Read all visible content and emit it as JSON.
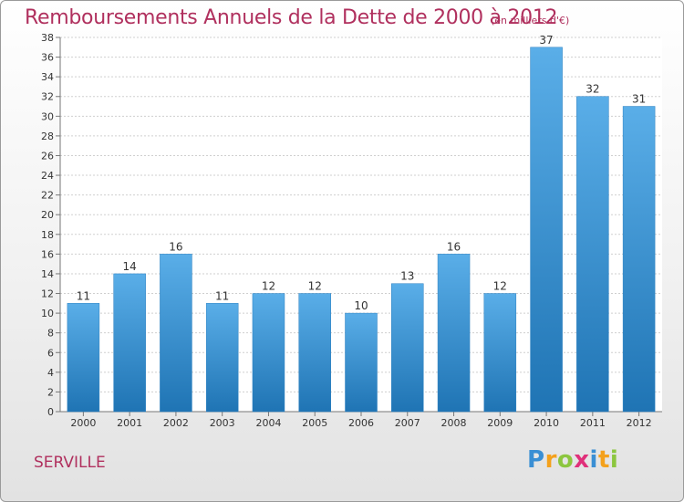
{
  "header": {
    "title": "Remboursements Annuels de la Dette de 2000 à 2012",
    "unit_note": "(en milliers d'€)"
  },
  "footer": {
    "commune": "SERVILLE",
    "logo_text": "Proxiti"
  },
  "colors": {
    "title": "#b0305e",
    "bar_top": "#5aaee8",
    "bar_bottom": "#1f74b4",
    "grid": "#cccccc"
  },
  "chart_data": {
    "type": "bar",
    "title": "Remboursements Annuels de la Dette de 2000 à 2012",
    "subtitle": "(en milliers d'€)",
    "categories": [
      "2000",
      "2001",
      "2002",
      "2003",
      "2004",
      "2005",
      "2006",
      "2007",
      "2008",
      "2009",
      "2010",
      "2011",
      "2012"
    ],
    "values": [
      11,
      14,
      16,
      11,
      12,
      12,
      10,
      13,
      16,
      12,
      37,
      32,
      31
    ],
    "data_labels": [
      "11",
      "14",
      "16",
      "11",
      "12",
      "12",
      "10",
      "13",
      "16",
      "12",
      "37",
      "32",
      "31"
    ],
    "ylim": [
      0,
      38
    ],
    "yticks": [
      0,
      2,
      4,
      6,
      8,
      10,
      12,
      14,
      16,
      18,
      20,
      22,
      24,
      26,
      28,
      30,
      32,
      34,
      36,
      38
    ],
    "grid": true,
    "legend": "none"
  }
}
